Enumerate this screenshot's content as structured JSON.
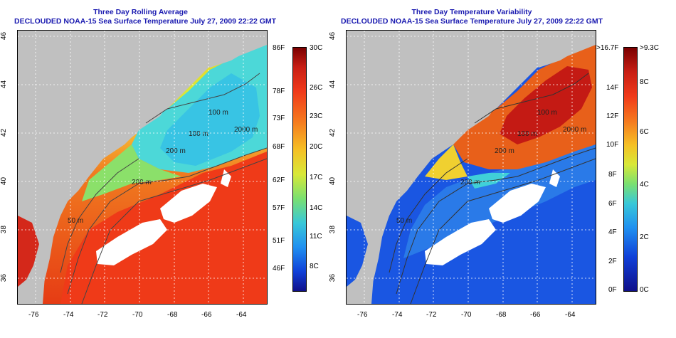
{
  "left_panel": {
    "title_line1": "Three Day Rolling Average",
    "title_line2": "DECLOUDED NOAA-15 Sea Surface Temperature July 27, 2009 22:22 GMT",
    "lon_ticks": [
      "-76",
      "-74",
      "-72",
      "-70",
      "-68",
      "-66",
      "-64"
    ],
    "lat_ticks": [
      "46",
      "44",
      "42",
      "40",
      "38",
      "36"
    ],
    "contour_labels": [
      "100 m",
      "100 m",
      "200 m",
      "2000 m",
      "200 m",
      "50 m"
    ],
    "colorbar_f": [
      "86F",
      "78F",
      "73F",
      "68F",
      "62F",
      "57F",
      "51F",
      "46F"
    ],
    "colorbar_c": [
      "30C",
      "26C",
      "23C",
      "20C",
      "17C",
      "14C",
      "11C",
      "8C"
    ]
  },
  "right_panel": {
    "title_line1": "Three Day Temperature Variability",
    "title_line2": "DECLOUDED NOAA-15 Sea Surface Temperature July 27, 2009 22:22 GMT",
    "lon_ticks": [
      "-76",
      "-74",
      "-72",
      "-70",
      "-68",
      "-66",
      "-64"
    ],
    "lat_ticks": [
      "46",
      "44",
      "42",
      "40",
      "38",
      "36"
    ],
    "contour_labels": [
      "100 m",
      "100 m",
      "200 m",
      "2000 m",
      "200 m",
      "50 m"
    ],
    "colorbar_f": [
      ">16.7F",
      "14F",
      "12F",
      "10F",
      "8F",
      "6F",
      "4F",
      "2F",
      "0F"
    ],
    "colorbar_c": [
      ">9.3C",
      "8C",
      "6C",
      "4C",
      "2C",
      "0C"
    ]
  },
  "colors": {
    "title": "#1a1ab0",
    "land": "#c0c0c0",
    "cloud": "#ffffff"
  }
}
